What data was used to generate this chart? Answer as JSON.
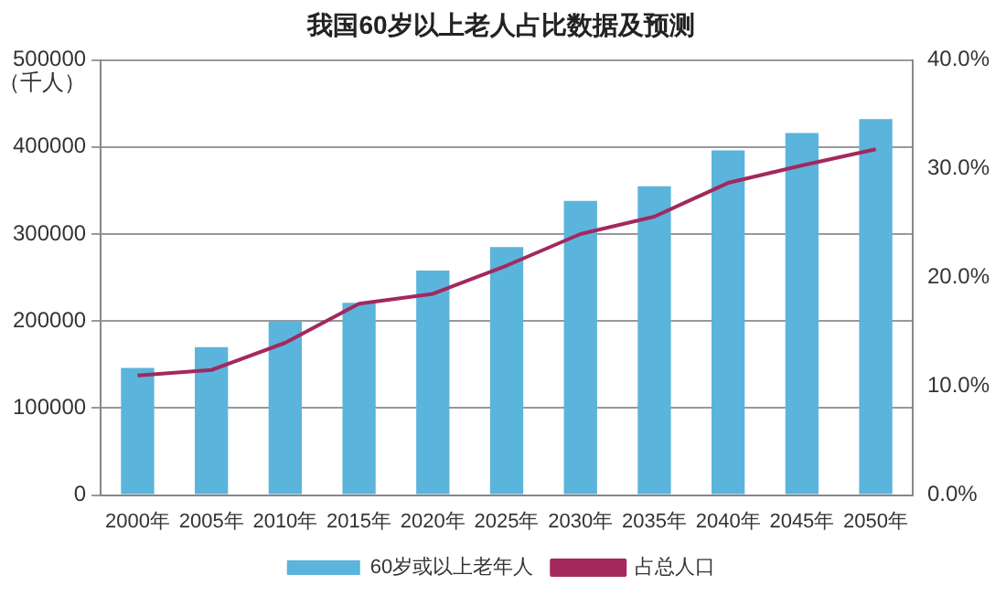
{
  "chart_data": {
    "type": "bar",
    "title": "我国60岁以上老人占比数据及预测",
    "ylabel": "（千人）",
    "categories": [
      "2000年",
      "2005年",
      "2010年",
      "2015年",
      "2020年",
      "2025年",
      "2030年",
      "2035年",
      "2040年",
      "2045年",
      "2050年"
    ],
    "series": [
      {
        "name": "60岁或以上老年人",
        "color": "#5bb4dc",
        "values": [
          146000,
          170000,
          200000,
          221000,
          258000,
          285000,
          338000,
          355000,
          396000,
          416000,
          432000
        ]
      },
      {
        "name": "占总人口",
        "type": "line",
        "axis": "y2",
        "color": "#a3285e",
        "values": [
          11.0,
          11.5,
          14.0,
          17.6,
          18.5,
          21.1,
          24.0,
          25.6,
          28.7,
          30.3,
          31.8
        ]
      }
    ],
    "ylim": [
      0,
      500000
    ],
    "yticks": [
      0,
      100000,
      200000,
      300000,
      400000,
      500000
    ],
    "y2lim": [
      0,
      40
    ],
    "y2ticks": [
      {
        "value": 0,
        "label": "0.0%"
      },
      {
        "value": 10,
        "label": "10.0%"
      },
      {
        "value": 20,
        "label": "20.0%"
      },
      {
        "value": 30,
        "label": "30.0%"
      },
      {
        "value": 40,
        "label": "40.0%"
      }
    ],
    "grid": "y",
    "legend": "bottom",
    "marker": "none",
    "line_style": "solid"
  }
}
